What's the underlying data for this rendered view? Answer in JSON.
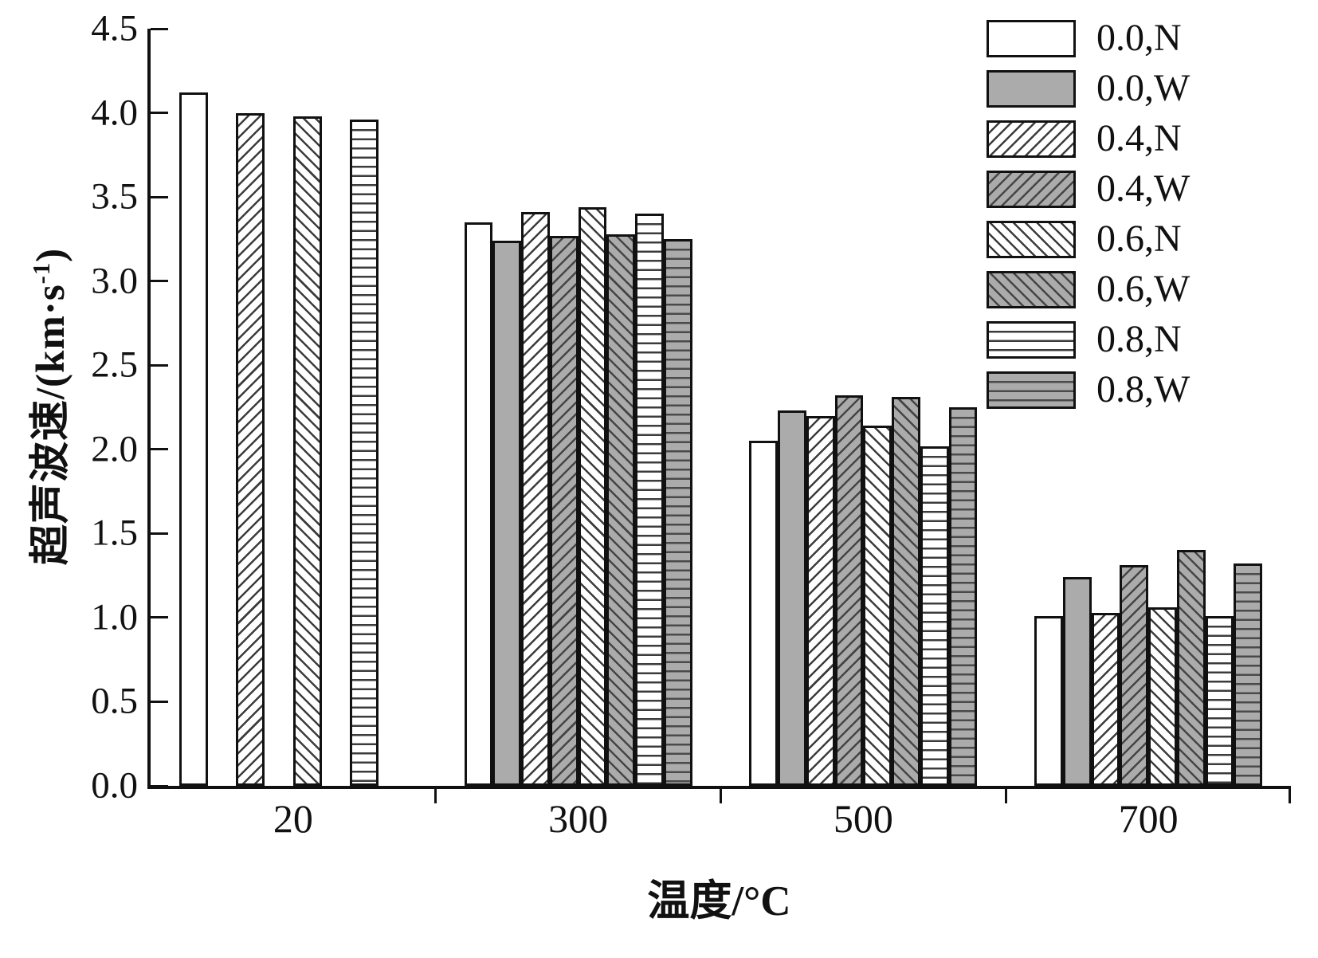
{
  "chart_data": {
    "type": "bar",
    "title": "",
    "xlabel": "温度/°C",
    "ylabel": "超声波速/(km·s⁻¹)",
    "ylabel_prefix": "超声波速/(km·s",
    "ylabel_sup": "-1",
    "ylabel_suffix": ")",
    "categories": [
      "20",
      "300",
      "500",
      "700"
    ],
    "y_ticks": [
      "0.0",
      "0.5",
      "1.0",
      "1.5",
      "2.0",
      "2.5",
      "3.0",
      "3.5",
      "4.0",
      "4.5"
    ],
    "ylim": [
      0,
      4.5
    ],
    "grid": false,
    "legend_position": "top-right",
    "series": [
      {
        "name": "0.0,N",
        "pattern": "plain-white",
        "values": [
          4.12,
          3.35,
          2.05,
          1.01
        ]
      },
      {
        "name": "0.0,W",
        "pattern": "solid-gray",
        "values": [
          null,
          3.24,
          2.23,
          1.24
        ]
      },
      {
        "name": "0.4,N",
        "pattern": "hatch-fwd-white",
        "values": [
          4.0,
          3.41,
          2.2,
          1.03
        ]
      },
      {
        "name": "0.4,W",
        "pattern": "hatch-fwd-gray",
        "values": [
          null,
          3.27,
          2.32,
          1.31
        ]
      },
      {
        "name": "0.6,N",
        "pattern": "hatch-back-white",
        "values": [
          3.98,
          3.44,
          2.14,
          1.06
        ]
      },
      {
        "name": "0.6,W",
        "pattern": "hatch-back-gray",
        "values": [
          null,
          3.28,
          2.31,
          1.4
        ]
      },
      {
        "name": "0.8,N",
        "pattern": "hlines-white",
        "values": [
          3.96,
          3.4,
          2.02,
          1.01
        ]
      },
      {
        "name": "0.8,W",
        "pattern": "hlines-gray",
        "values": [
          null,
          3.25,
          2.25,
          1.32
        ]
      }
    ],
    "colors": {
      "bar_white": "#ffffff",
      "bar_gray": "#ababab",
      "bar_border": "#111111",
      "axis": "#111111",
      "hatch_line": "#3c3c3c",
      "background": "#ffffff"
    }
  }
}
